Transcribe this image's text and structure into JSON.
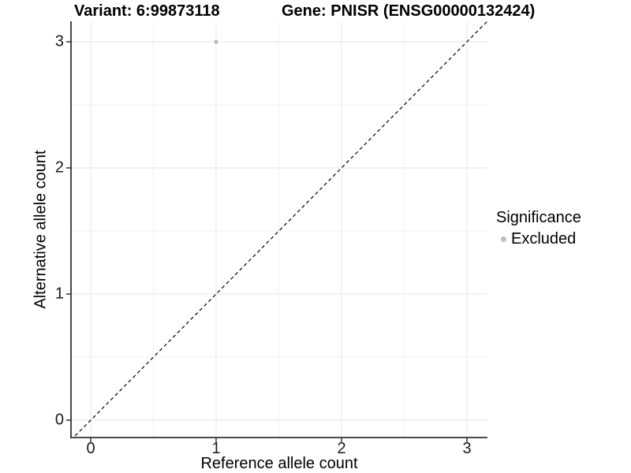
{
  "plot": {
    "title_left": "Variant: 6:99873118",
    "title_right": "Gene: PNISR (ENSG00000132424)"
  },
  "axes": {
    "x": {
      "title": "Reference allele count",
      "tick_labels": [
        "0",
        "1",
        "2",
        "3"
      ]
    },
    "y": {
      "title": "Alternative allele count",
      "tick_labels": [
        "0",
        "1",
        "2",
        "3"
      ]
    }
  },
  "legend": {
    "title": "Significance",
    "items": [
      {
        "label": "Excluded",
        "color": "#bdbdbd",
        "marker": "circle-icon"
      }
    ]
  },
  "colors": {
    "point": "#bdbdbd",
    "grid": "#ebebeb",
    "axis_line": "#333333",
    "reference_line": "#000000",
    "background": "#ffffff"
  },
  "chart_data": {
    "type": "scatter",
    "title": "Variant: 6:99873118 / Gene: PNISR (ENSG00000132424)",
    "xlabel": "Reference allele count",
    "ylabel": "Alternative allele count",
    "xlim": [
      -0.16,
      3.17
    ],
    "ylim": [
      -0.16,
      3.17
    ],
    "x_ticks": [
      0,
      1,
      2,
      3
    ],
    "y_ticks": [
      0,
      1,
      2,
      3
    ],
    "grid": true,
    "legend_position": "right",
    "legend_title": "Significance",
    "series": [
      {
        "name": "Excluded",
        "color": "#bdbdbd",
        "marker": "circle",
        "point_radius_px": 2.7,
        "points": [
          {
            "x": 1,
            "y": 3
          }
        ]
      }
    ],
    "reference_line": {
      "slope": 1,
      "intercept": 0,
      "style": "dashed",
      "color": "#000000"
    }
  }
}
